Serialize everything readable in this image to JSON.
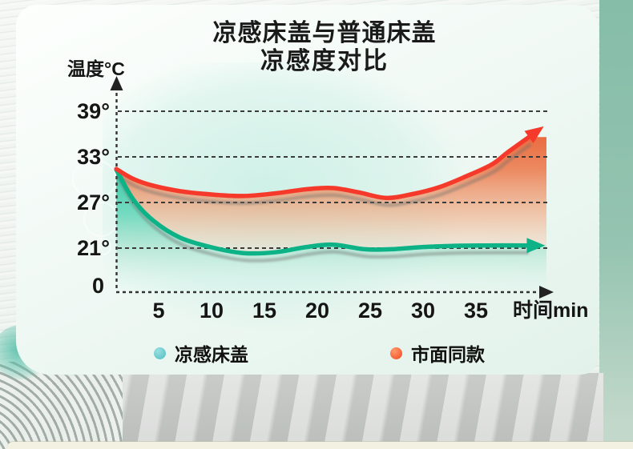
{
  "title": {
    "line1": "凉感床盖与普通床盖",
    "line2": "凉感度对比"
  },
  "chart_data": {
    "type": "line",
    "title": "凉感床盖与普通床盖 凉感度对比",
    "xlabel": "时间min",
    "ylabel": "温度°C",
    "x_ticks": [
      5,
      10,
      15,
      20,
      25,
      30,
      35
    ],
    "y_ticks": [
      {
        "label": "39°",
        "value": 39
      },
      {
        "label": "33°",
        "value": 33
      },
      {
        "label": "27°",
        "value": 27
      },
      {
        "label": "21°",
        "value": 21
      },
      {
        "label": "0",
        "value": 0
      }
    ],
    "ylim": [
      0,
      39
    ],
    "axis_note": "broken y-axis: 0 baseline compressed; dashed gridlines; both axes dashed with arrowheads",
    "grid": "dashed horizontal lines at 39,33,27,21",
    "legend_position": "bottom",
    "series": [
      {
        "name": "凉感床盖",
        "color": "#0db287",
        "points": [
          [
            1,
            31.3
          ],
          [
            2.6,
            27.4
          ],
          [
            4.5,
            24.6
          ],
          [
            7,
            22.4
          ],
          [
            10,
            21.1
          ],
          [
            13,
            20.35
          ],
          [
            16,
            20.45
          ],
          [
            19,
            21.15
          ],
          [
            21.5,
            21.45
          ],
          [
            24.5,
            20.85
          ],
          [
            27,
            20.85
          ],
          [
            30,
            21.15
          ],
          [
            33,
            21.3
          ],
          [
            36,
            21.35
          ],
          [
            39.8,
            21.35
          ]
        ],
        "gradient": [
          [
            0,
            "rgba(40,206,171,0.95)"
          ],
          [
            0.4,
            "rgba(96,223,197,0.85)"
          ],
          [
            0.75,
            "rgba(168,238,223,0.5)"
          ],
          [
            1,
            "rgba(214,246,239,0.12)"
          ]
        ]
      },
      {
        "name": "市面同款",
        "color": "#f53a2b",
        "points": [
          [
            1,
            31.4
          ],
          [
            2.6,
            30.1
          ],
          [
            4.5,
            29.2
          ],
          [
            7,
            28.5
          ],
          [
            10,
            28.05
          ],
          [
            13,
            27.85
          ],
          [
            16,
            28.2
          ],
          [
            19,
            28.75
          ],
          [
            21.5,
            28.9
          ],
          [
            24,
            28.3
          ],
          [
            26.5,
            27.6
          ],
          [
            29,
            28.1
          ],
          [
            31.5,
            29.0
          ],
          [
            34,
            30.4
          ],
          [
            36.5,
            32.0
          ],
          [
            38,
            33.6
          ],
          [
            40,
            35.6
          ]
        ],
        "gradient": [
          [
            0,
            "rgba(232,83,36,0.95)"
          ],
          [
            0.3,
            "rgba(236,110,60,0.8)"
          ],
          [
            0.6,
            "rgba(243,168,126,0.55)"
          ],
          [
            0.85,
            "rgba(248,215,194,0.25)"
          ],
          [
            1,
            "rgba(250,236,226,0)"
          ]
        ]
      }
    ]
  },
  "legend": [
    {
      "label": "凉感床盖",
      "dot_color": "#4fbec2",
      "dot_highlight": "#9adfe1"
    },
    {
      "label": "市面同款",
      "dot_color": "#f4451f",
      "dot_highlight": "#ff9a6b"
    }
  ],
  "colors": {
    "grid": "#3b3b3b",
    "card_bg": "#f1f9f5",
    "right_band": "#95c4b1",
    "bottom_strip": "#f3f1e2",
    "title_text": "#1a1a1a"
  }
}
